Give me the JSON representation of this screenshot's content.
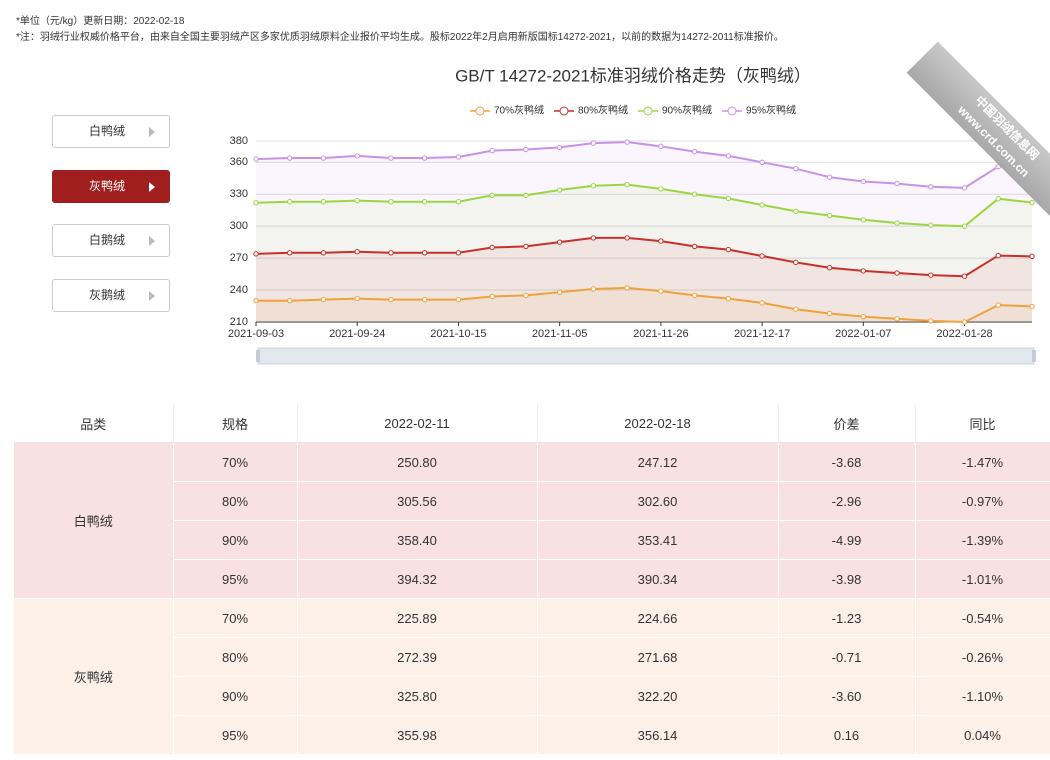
{
  "header": {
    "lines": [
      "*单位（元/kg）更新日期：2022-02-18",
      "*注：羽绒行业权威价格平台，由来自全国主要羽绒产区多家优质羽绒原料企业报价平均生成。股标2022年2月启用新版国标14272-2021，以前的数据为14272-2011标准报价。"
    ]
  },
  "buttons": [
    "白鸭绒",
    "灰鸭绒",
    "白鹅绒",
    "灰鹅绒"
  ],
  "ribbon": [
    "中国羽绒信息网",
    "www.crd.com.cn"
  ],
  "chart_data": {
    "type": "line",
    "title": "GB/T 14272-2021标准羽绒价格走势（灰鸭绒）",
    "categories": [
      "2021-09-03",
      null,
      null,
      "2021-09-24",
      null,
      null,
      "2021-10-15",
      null,
      null,
      "2021-11-05",
      null,
      null,
      "2021-11-26",
      null,
      null,
      "2021-12-17",
      null,
      null,
      "2022-01-07",
      null,
      null,
      "2022-01-28",
      null,
      null
    ],
    "series": [
      {
        "name": "70%灰鸭绒",
        "color": "#f0a23a",
        "values": [
          230,
          230,
          231,
          232,
          231,
          231,
          231,
          234,
          235,
          238,
          241,
          242,
          239,
          235,
          232,
          228,
          222,
          218,
          215,
          213,
          211,
          210,
          225.89,
          224.66
        ]
      },
      {
        "name": "80%灰鸭绒",
        "color": "#c9302c",
        "values": [
          274,
          275,
          275,
          276,
          275,
          275,
          275,
          280,
          281,
          285,
          289,
          289,
          286,
          281,
          278,
          272,
          266,
          261,
          258,
          256,
          254,
          253,
          272.39,
          271.68
        ]
      },
      {
        "name": "90%灰鸭绒",
        "color": "#9ad641",
        "values": [
          322,
          323,
          323,
          324,
          323,
          323,
          323,
          329,
          329,
          334,
          338,
          339,
          335,
          330,
          326,
          320,
          314,
          310,
          306,
          303,
          301,
          300,
          325.8,
          322.2
        ]
      },
      {
        "name": "95%灰鸭绒",
        "color": "#c792e8",
        "values": [
          363,
          364,
          364,
          366,
          364,
          364,
          365,
          371,
          372,
          374,
          378,
          379,
          375,
          370,
          366,
          360,
          354,
          346,
          342,
          340,
          337,
          336,
          355.98,
          356.14
        ]
      }
    ],
    "ylim": [
      210,
      380
    ],
    "yticks": [
      210,
      240,
      270,
      300,
      330,
      360,
      380
    ],
    "grid": true
  },
  "table": {
    "header": [
      "品类",
      "规格",
      "2022-02-11",
      "2022-02-18",
      "价差",
      "同比"
    ],
    "groups": [
      {
        "name": "白鸭绒",
        "rows": [
          [
            "70%",
            "250.80",
            "247.12",
            "-3.68",
            "-1.47%"
          ],
          [
            "80%",
            "305.56",
            "302.60",
            "-2.96",
            "-0.97%"
          ],
          [
            "90%",
            "358.40",
            "353.41",
            "-4.99",
            "-1.39%"
          ],
          [
            "95%",
            "394.32",
            "390.34",
            "-3.98",
            "-1.01%"
          ]
        ]
      },
      {
        "name": "灰鸭绒",
        "rows": [
          [
            "70%",
            "225.89",
            "224.66",
            "-1.23",
            "-0.54%"
          ],
          [
            "80%",
            "272.39",
            "271.68",
            "-0.71",
            "-0.26%"
          ],
          [
            "90%",
            "325.80",
            "322.20",
            "-3.60",
            "-1.10%"
          ],
          [
            "95%",
            "355.98",
            "356.14",
            "0.16",
            "0.04%"
          ]
        ]
      }
    ]
  }
}
